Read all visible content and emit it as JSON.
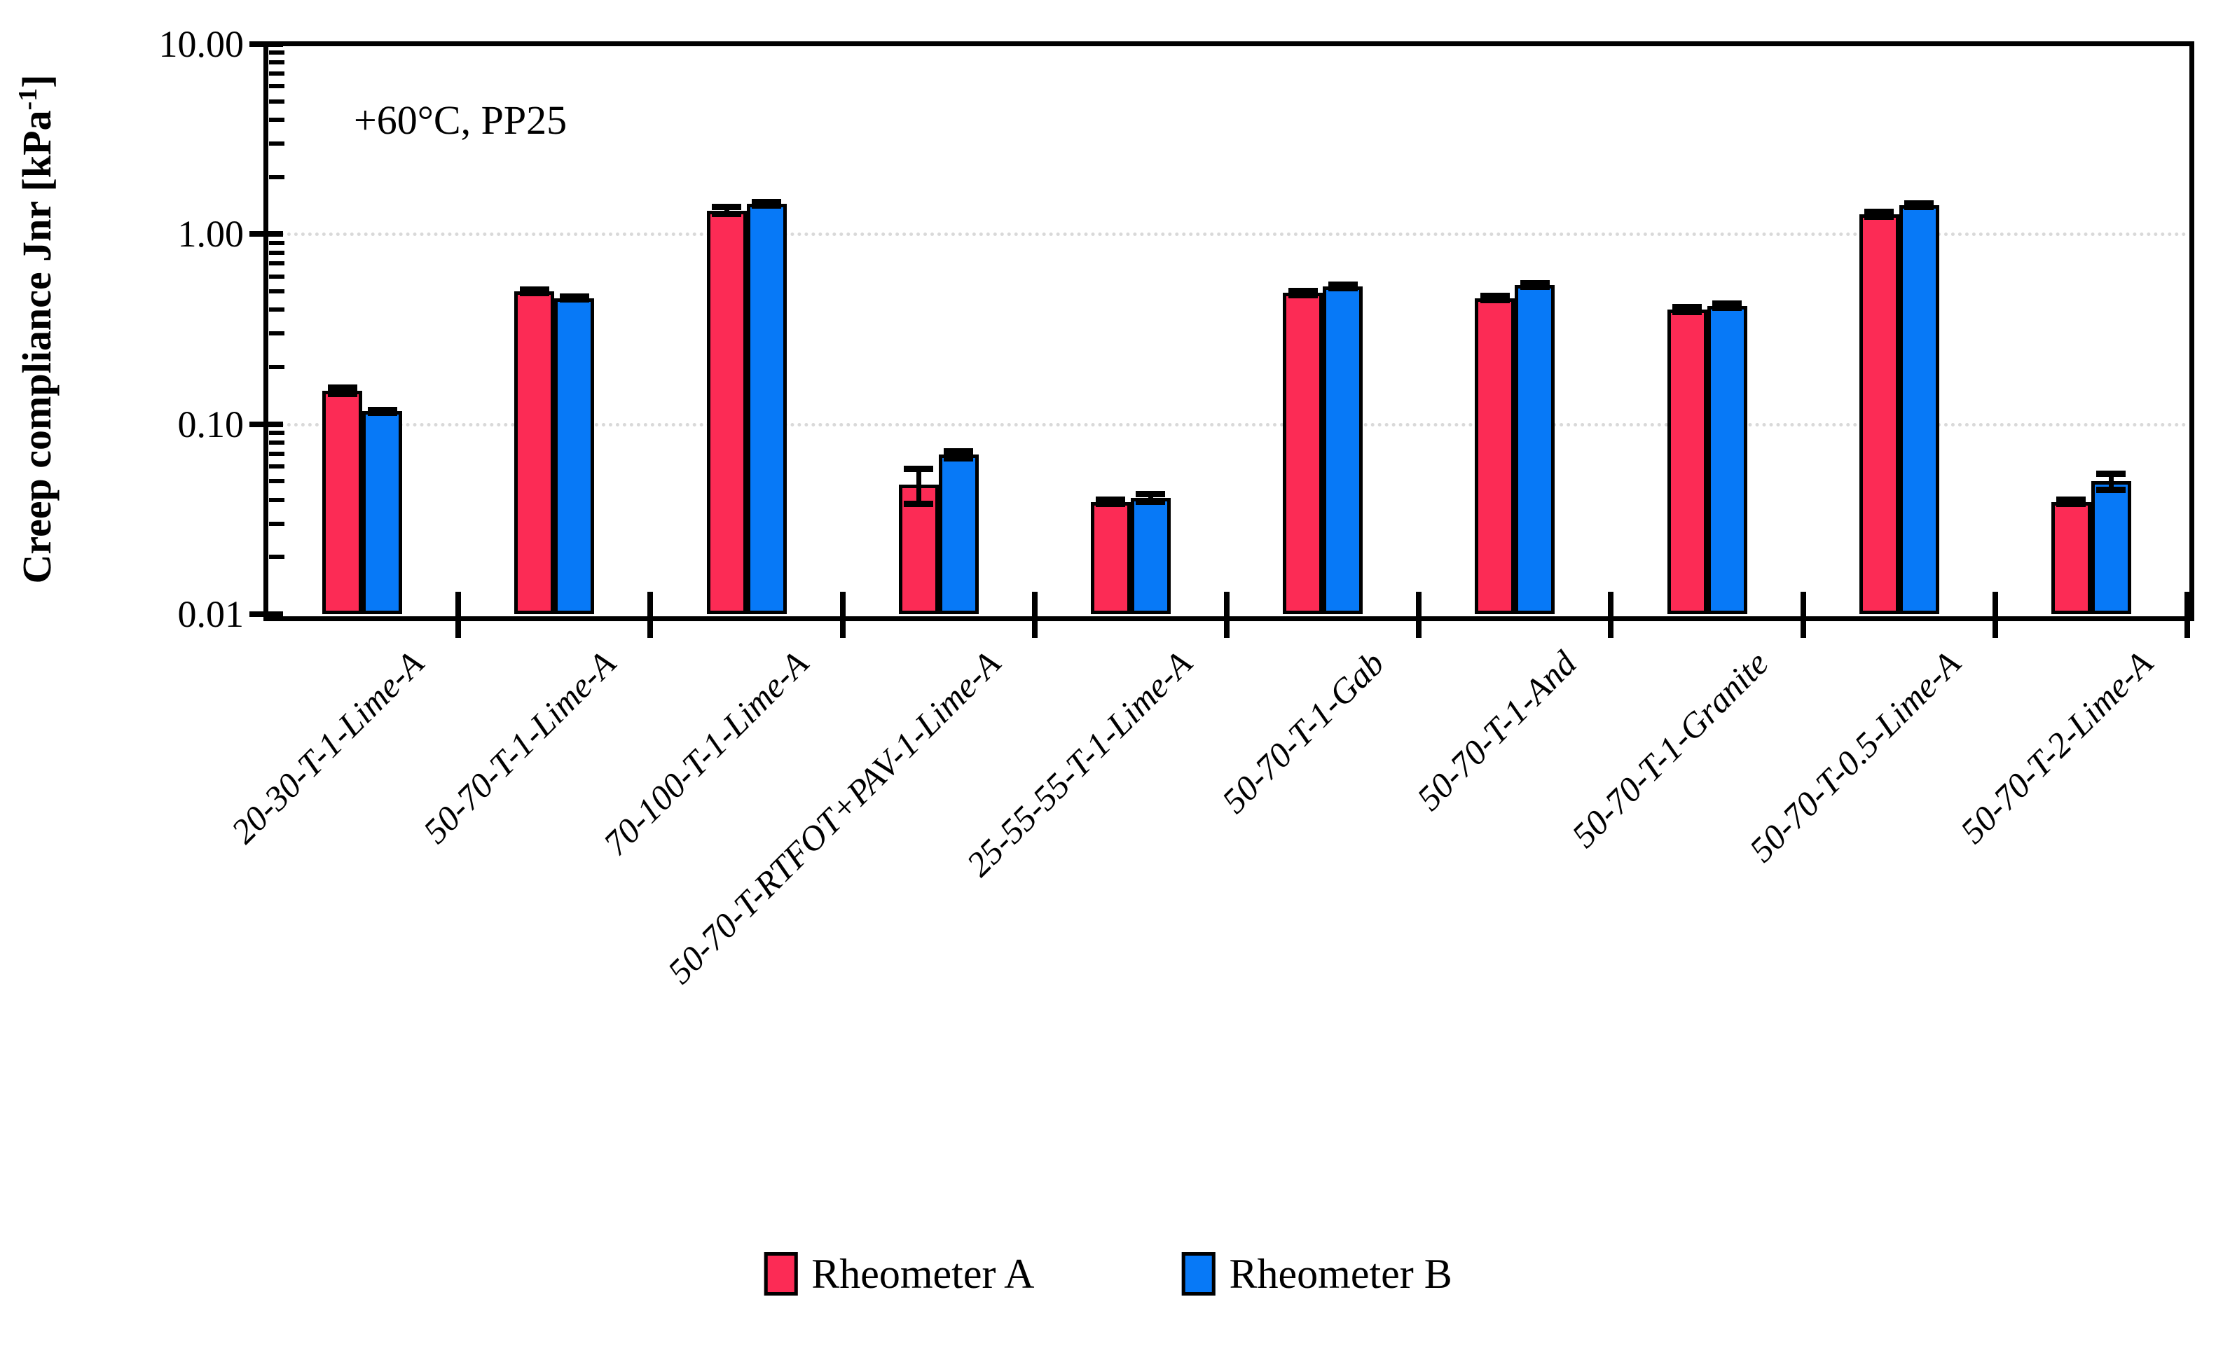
{
  "annotation": "+60°C, PP25",
  "y_axis_title": {
    "prefix": "Creep compliance Jnr [kPa",
    "sup": "-1",
    "suffix": "]"
  },
  "legend": [
    {
      "label": "Rheometer A",
      "color": "#fc2b55"
    },
    {
      "label": "Rheometer B",
      "color": "#0779f7"
    }
  ],
  "colors": {
    "rheometer_a": "#fc2b55",
    "rheometer_b": "#0779f7",
    "axis": "#000000",
    "gridline": "#d9d9d9",
    "background": "#ffffff"
  },
  "chart_data": {
    "type": "bar",
    "title": "",
    "xlabel": "",
    "ylabel": "Creep compliance Jnr [kPa-1]",
    "scale": "log",
    "ylim": [
      0.01,
      10
    ],
    "grid": "horizontal-dotted",
    "grid_values": [
      1.0,
      0.1
    ],
    "legend_position": "bottom",
    "annotation": "+60°C, PP25",
    "y_ticks": [
      {
        "label": "10.00",
        "value": 10
      },
      {
        "label": "1.00",
        "value": 1
      },
      {
        "label": "0.10",
        "value": 0.1
      },
      {
        "label": "0.01",
        "value": 0.01
      }
    ],
    "categories": [
      "20-30-T-1-Lime-A",
      "50-70-T-1-Lime-A",
      "70-100-T-1-Lime-A",
      "50-70-T-RTFOT+PAV-1-Lime-A",
      "25-55-55-T-1-Lime-A",
      "50-70-T-1-Gab",
      "50-70-T-1-And",
      "50-70-T-1-Granite",
      "50-70-T-0.5-Lime-A",
      "50-70-T-2-Lime-A"
    ],
    "series": [
      {
        "name": "Rheometer A",
        "color": "#fc2b55",
        "values": [
          0.15,
          0.5,
          1.33,
          0.048,
          0.039,
          0.49,
          0.46,
          0.4,
          1.27,
          0.039
        ],
        "errors": [
          0.006,
          0.012,
          0.055,
          0.01,
          0.001,
          0.012,
          0.012,
          0.012,
          0.035,
          0.001
        ]
      },
      {
        "name": "Rheometer B",
        "color": "#0779f7",
        "values": [
          0.117,
          0.46,
          1.44,
          0.069,
          0.041,
          0.53,
          0.54,
          0.42,
          1.42,
          0.05
        ],
        "errors": [
          0.002,
          0.008,
          0.03,
          0.003,
          0.002,
          0.012,
          0.01,
          0.012,
          0.035,
          0.005
        ]
      }
    ]
  }
}
